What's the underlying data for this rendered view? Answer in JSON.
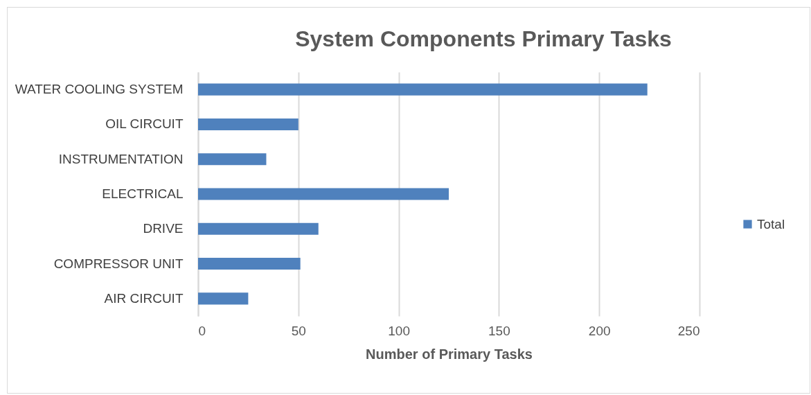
{
  "chart_data": {
    "type": "bar",
    "orientation": "horizontal",
    "title": "System Components Primary Tasks",
    "xlabel": "Number of Primary Tasks",
    "categories": [
      "WATER COOLING SYSTEM",
      "OIL CIRCUIT",
      "INSTRUMENTATION",
      "ELECTRICAL",
      "DRIVE",
      "COMPRESSOR UNIT",
      "AIR CIRCUIT"
    ],
    "series": [
      {
        "name": "Total",
        "color": "#4f81bd",
        "values": [
          224,
          50,
          34,
          125,
          60,
          51,
          25
        ]
      }
    ],
    "xlim": [
      0,
      250
    ],
    "xticks": [
      0,
      50,
      100,
      150,
      200,
      250
    ],
    "grid": "x",
    "legend": "right"
  }
}
